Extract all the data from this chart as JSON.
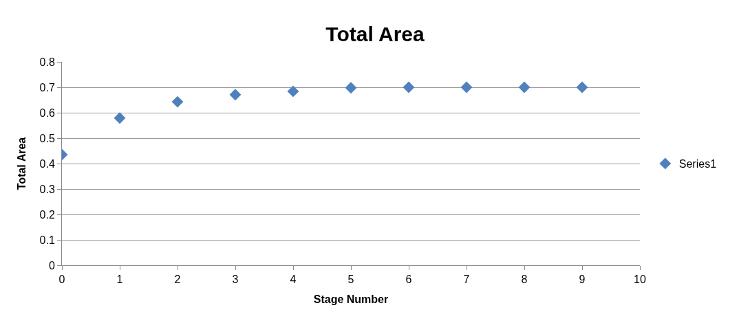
{
  "chart_data": {
    "type": "scatter",
    "title": "Total Area",
    "xlabel": "Stage Number",
    "ylabel": "Total Area",
    "x": [
      0,
      1,
      2,
      3,
      4,
      5,
      6,
      7,
      8,
      9
    ],
    "series": [
      {
        "name": "Series1",
        "color": "#4f81bd",
        "values": [
          0.435,
          0.579,
          0.643,
          0.671,
          0.684,
          0.698,
          0.7,
          0.7,
          0.7,
          0.7
        ]
      }
    ],
    "xlim": [
      0,
      10
    ],
    "xticks": [
      0,
      1,
      2,
      3,
      4,
      5,
      6,
      7,
      8,
      9,
      10
    ],
    "ylim": [
      0,
      0.8
    ],
    "yticks": [
      0,
      0.1,
      0.2,
      0.3,
      0.4,
      0.5,
      0.6,
      0.7,
      0.8
    ],
    "grid": "y",
    "legend": "right",
    "marker": "diamond"
  }
}
